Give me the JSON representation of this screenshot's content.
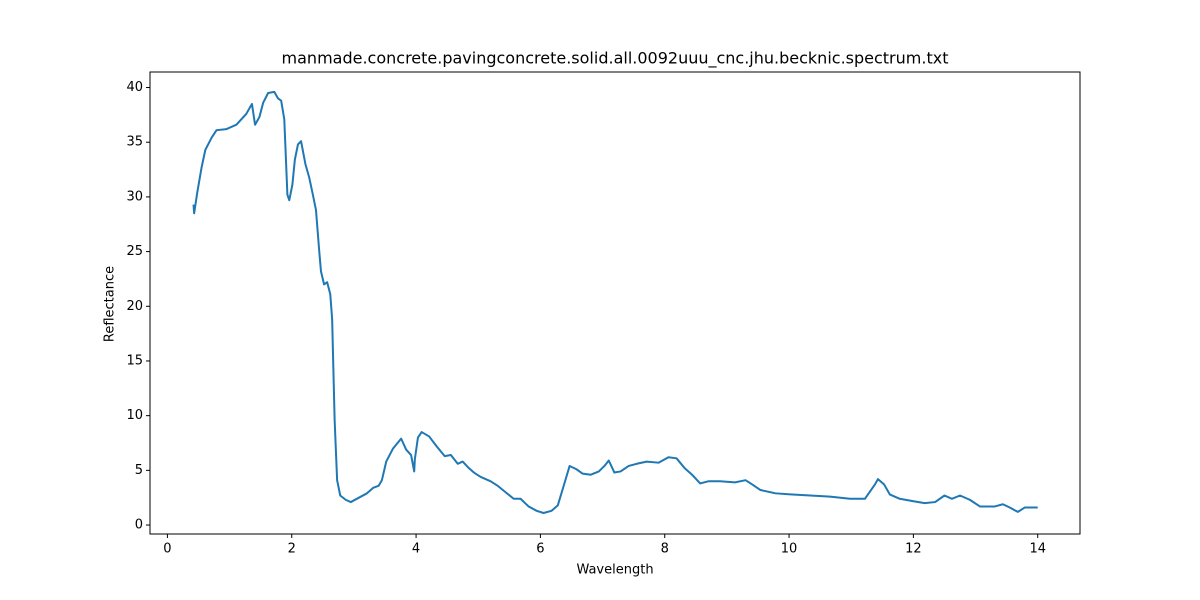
{
  "chart_data": {
    "type": "line",
    "title": "manmade.concrete.pavingconcrete.solid.all.0092uuu_cnc.jhu.becknic.spectrum.txt",
    "x_label": "Wavelength",
    "y_label": "Reflectance",
    "xlim": [
      -0.28,
      14.68
    ],
    "ylim": [
      -0.82,
      41.42
    ],
    "xticks": [
      0,
      2,
      4,
      6,
      8,
      10,
      12,
      14
    ],
    "yticks": [
      0,
      5,
      10,
      15,
      20,
      25,
      30,
      35,
      40
    ],
    "color": "#1f77b4",
    "x": [
      0.42,
      0.43,
      0.48,
      0.55,
      0.61,
      0.71,
      0.79,
      0.95,
      1.11,
      1.27,
      1.36,
      1.41,
      1.48,
      1.54,
      1.62,
      1.72,
      1.78,
      1.83,
      1.88,
      1.93,
      1.96,
      2.01,
      2.05,
      2.1,
      2.15,
      2.22,
      2.28,
      2.34,
      2.39,
      2.44,
      2.47,
      2.52,
      2.57,
      2.62,
      2.65,
      2.69,
      2.73,
      2.78,
      2.87,
      2.95,
      3.08,
      3.21,
      3.31,
      3.4,
      3.45,
      3.52,
      3.63,
      3.76,
      3.84,
      3.92,
      3.97,
      3.98,
      4.03,
      4.09,
      4.21,
      4.33,
      4.46,
      4.56,
      4.67,
      4.75,
      4.85,
      4.93,
      5.04,
      5.2,
      5.31,
      5.44,
      5.57,
      5.68,
      5.81,
      5.94,
      6.05,
      6.18,
      6.28,
      6.37,
      6.47,
      6.58,
      6.68,
      6.81,
      6.94,
      7.03,
      7.1,
      7.19,
      7.29,
      7.42,
      7.55,
      7.71,
      7.9,
      8.06,
      8.19,
      8.32,
      8.44,
      8.57,
      8.7,
      8.89,
      9.13,
      9.3,
      9.41,
      9.54,
      9.78,
      10.02,
      10.34,
      10.66,
      10.98,
      11.22,
      11.38,
      11.43,
      11.53,
      11.62,
      11.78,
      11.98,
      12.18,
      12.35,
      12.5,
      12.62,
      12.75,
      12.91,
      13.07,
      13.31,
      13.44,
      13.55,
      13.68,
      13.79,
      14.0
    ],
    "values": [
      29.3,
      28.5,
      30.4,
      32.7,
      34.3,
      35.4,
      36.1,
      36.2,
      36.6,
      37.6,
      38.5,
      36.6,
      37.3,
      38.6,
      39.5,
      39.6,
      39.0,
      38.8,
      37.1,
      30.2,
      29.7,
      31.1,
      33.4,
      34.8,
      35.1,
      33.0,
      31.8,
      30.2,
      28.8,
      25.2,
      23.2,
      22.0,
      22.2,
      21.1,
      18.8,
      9.6,
      4.1,
      2.7,
      2.3,
      2.1,
      2.5,
      2.9,
      3.4,
      3.6,
      4.1,
      5.8,
      7.0,
      7.9,
      6.9,
      6.4,
      4.9,
      6.0,
      8.0,
      8.5,
      8.1,
      7.2,
      6.3,
      6.4,
      5.6,
      5.8,
      5.2,
      4.8,
      4.4,
      4.0,
      3.6,
      3.0,
      2.4,
      2.4,
      1.7,
      1.3,
      1.1,
      1.3,
      1.8,
      3.5,
      5.4,
      5.1,
      4.7,
      4.6,
      4.9,
      5.4,
      5.9,
      4.8,
      4.9,
      5.4,
      5.6,
      5.8,
      5.7,
      6.2,
      6.1,
      5.2,
      4.6,
      3.8,
      4.0,
      4.0,
      3.9,
      4.1,
      3.7,
      3.2,
      2.9,
      2.8,
      2.7,
      2.6,
      2.4,
      2.4,
      3.7,
      4.2,
      3.7,
      2.8,
      2.4,
      2.2,
      2.0,
      2.1,
      2.7,
      2.4,
      2.7,
      2.3,
      1.7,
      1.7,
      1.9,
      1.6,
      1.2,
      1.6,
      1.6
    ]
  }
}
